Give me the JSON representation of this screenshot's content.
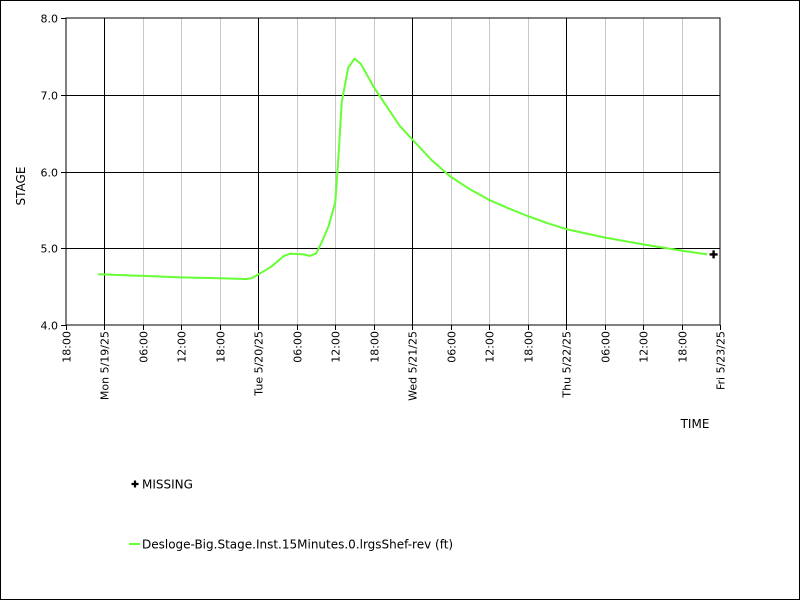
{
  "chart_data": {
    "type": "line",
    "xlabel": "TIME",
    "ylabel": "STAGE",
    "ylim": [
      4.0,
      8.0
    ],
    "yticks": [
      "4.0",
      "5.0",
      "6.0",
      "7.0",
      "8.0"
    ],
    "xlim": [
      "2025-05-18 18:00",
      "2025-05-23 00:00"
    ],
    "xticks": [
      {
        "time": "2025-05-18 18:00",
        "label": "18:00",
        "major": false
      },
      {
        "time": "2025-05-19 00:00",
        "label": "Mon 5/19/25",
        "major": true
      },
      {
        "time": "2025-05-19 06:00",
        "label": "06:00",
        "major": false
      },
      {
        "time": "2025-05-19 12:00",
        "label": "12:00",
        "major": false
      },
      {
        "time": "2025-05-19 18:00",
        "label": "18:00",
        "major": false
      },
      {
        "time": "2025-05-20 00:00",
        "label": "Tue 5/20/25",
        "major": true
      },
      {
        "time": "2025-05-20 06:00",
        "label": "06:00",
        "major": false
      },
      {
        "time": "2025-05-20 12:00",
        "label": "12:00",
        "major": false
      },
      {
        "time": "2025-05-20 18:00",
        "label": "18:00",
        "major": false
      },
      {
        "time": "2025-05-21 00:00",
        "label": "Wed 5/21/25",
        "major": true
      },
      {
        "time": "2025-05-21 06:00",
        "label": "06:00",
        "major": false
      },
      {
        "time": "2025-05-21 12:00",
        "label": "12:00",
        "major": false
      },
      {
        "time": "2025-05-21 18:00",
        "label": "18:00",
        "major": false
      },
      {
        "time": "2025-05-22 00:00",
        "label": "Thu 5/22/25",
        "major": true
      },
      {
        "time": "2025-05-22 06:00",
        "label": "06:00",
        "major": false
      },
      {
        "time": "2025-05-22 12:00",
        "label": "12:00",
        "major": false
      },
      {
        "time": "2025-05-22 18:00",
        "label": "18:00",
        "major": false
      },
      {
        "time": "2025-05-23 00:00",
        "label": "Fri 5/23/25",
        "major": true
      }
    ],
    "grid": true,
    "series": [
      {
        "name": "Desloge-Big.Stage.Inst.15Minutes.0.lrgsShef-rev (ft)",
        "color": "#66ff33",
        "points": [
          [
            "2025-05-18 23:00",
            4.66
          ],
          [
            "2025-05-19 06:00",
            4.64
          ],
          [
            "2025-05-19 12:00",
            4.62
          ],
          [
            "2025-05-19 18:00",
            4.61
          ],
          [
            "2025-05-19 22:00",
            4.6
          ],
          [
            "2025-05-19 23:00",
            4.61
          ],
          [
            "2025-05-20 00:00",
            4.66
          ],
          [
            "2025-05-20 02:00",
            4.76
          ],
          [
            "2025-05-20 04:00",
            4.9
          ],
          [
            "2025-05-20 05:00",
            4.93
          ],
          [
            "2025-05-20 07:00",
            4.92
          ],
          [
            "2025-05-20 08:00",
            4.9
          ],
          [
            "2025-05-20 09:00",
            4.93
          ],
          [
            "2025-05-20 10:00",
            5.1
          ],
          [
            "2025-05-20 11:00",
            5.3
          ],
          [
            "2025-05-20 12:00",
            5.6
          ],
          [
            "2025-05-20 12:30",
            6.2
          ],
          [
            "2025-05-20 13:00",
            6.9
          ],
          [
            "2025-05-20 14:00",
            7.35
          ],
          [
            "2025-05-20 15:00",
            7.47
          ],
          [
            "2025-05-20 16:00",
            7.4
          ],
          [
            "2025-05-20 18:00",
            7.1
          ],
          [
            "2025-05-20 20:00",
            6.85
          ],
          [
            "2025-05-20 22:00",
            6.6
          ],
          [
            "2025-05-21 00:00",
            6.42
          ],
          [
            "2025-05-21 03:00",
            6.15
          ],
          [
            "2025-05-21 06:00",
            5.93
          ],
          [
            "2025-05-21 09:00",
            5.77
          ],
          [
            "2025-05-21 12:00",
            5.63
          ],
          [
            "2025-05-21 15:00",
            5.52
          ],
          [
            "2025-05-21 18:00",
            5.42
          ],
          [
            "2025-05-21 21:00",
            5.33
          ],
          [
            "2025-05-22 00:00",
            5.25
          ],
          [
            "2025-05-22 06:00",
            5.14
          ],
          [
            "2025-05-22 12:00",
            5.05
          ],
          [
            "2025-05-22 18:00",
            4.97
          ],
          [
            "2025-05-22 22:00",
            4.92
          ]
        ]
      }
    ],
    "missing_points": [
      [
        "2025-05-22 23:00",
        4.92
      ]
    ],
    "legend": {
      "placement": "bottom-left",
      "missing_label": "MISSING",
      "series_label": "Desloge-Big.Stage.Inst.15Minutes.0.lrgsShef-rev (ft)"
    }
  }
}
